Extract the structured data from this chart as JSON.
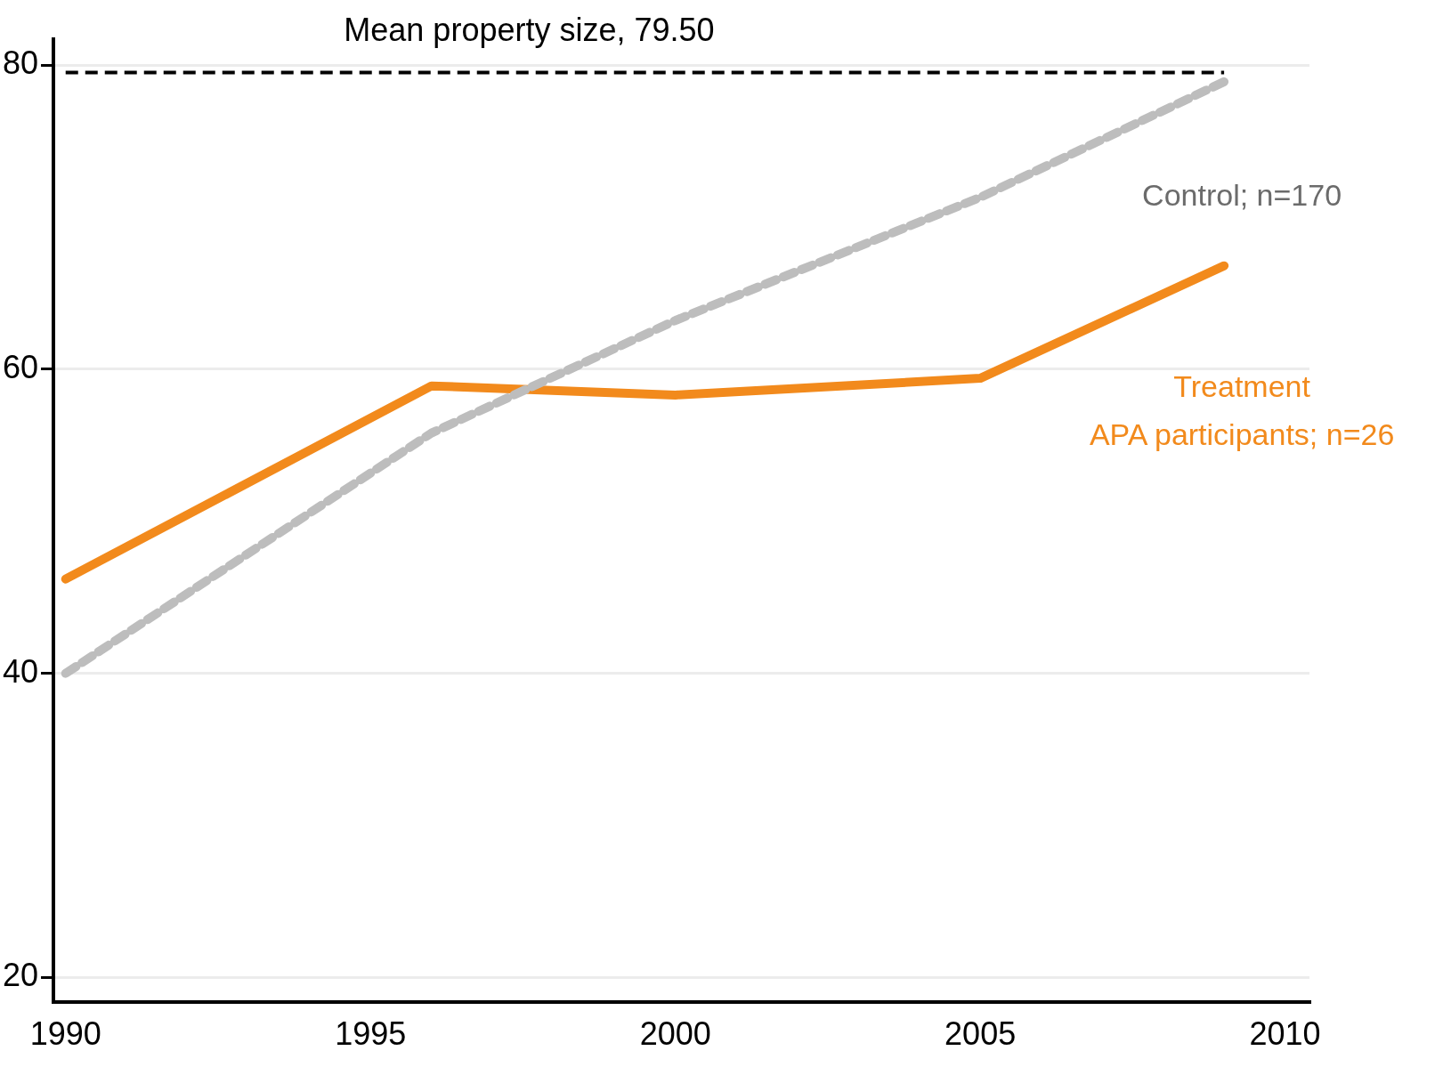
{
  "chart_data": {
    "type": "line",
    "x": [
      1990,
      1996,
      2000,
      2005,
      2009
    ],
    "series": [
      {
        "name": "Control; n=170",
        "color": "#bdbdbd",
        "line_style": "dashed",
        "values": [
          40,
          55.8,
          63.2,
          71.3,
          78.9
        ]
      },
      {
        "name": "Treatment\nAPA participants; n=26",
        "color": "#f28a1c",
        "line_style": "solid",
        "values": [
          46.2,
          58.9,
          58.3,
          59.4,
          66.8
        ]
      }
    ],
    "xlim": [
      1989.8,
      2010.4
    ],
    "xticks": [
      1990,
      1995,
      2000,
      2005,
      2010
    ],
    "ylim": [
      18.4,
      81.7
    ],
    "yticks": [
      20,
      40,
      60,
      80
    ],
    "grid": "y",
    "legend": false,
    "marker": "none",
    "ref_lines": [
      {
        "axis": "y",
        "value": 79.5,
        "label": "Mean property size, 79.50",
        "color": "#000000",
        "line_style": "dashed"
      }
    ]
  }
}
